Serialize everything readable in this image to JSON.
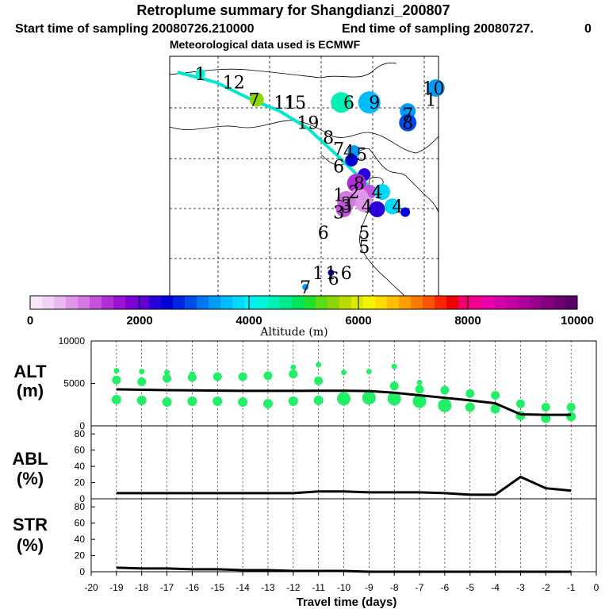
{
  "header": {
    "title": "Retroplume summary for Shangdianzi_200807",
    "start": "Start time of sampling 20080726.210000",
    "end": "End time of sampling 20080727.",
    "end_hour": "0",
    "met": "Meteorological data used is ECMWF"
  },
  "colorbar": {
    "title": "Altitude (m)",
    "ticks": [
      "0",
      "2000",
      "4000",
      "6000",
      "8000",
      "10000"
    ],
    "colors": [
      "#f7e8f8",
      "#f0d4f3",
      "#e8b8ee",
      "#df98e8",
      "#d478e2",
      "#c452dc",
      "#b02ed6",
      "#9a12d2",
      "#7f00d4",
      "#6200d8",
      "#2a00d8",
      "#0000d8",
      "#0024e0",
      "#004cea",
      "#0076f2",
      "#009cf8",
      "#00bcfc",
      "#00d8fc",
      "#00eef4",
      "#00f6dc",
      "#00f0b6",
      "#00ea8c",
      "#00e45c",
      "#22e02c",
      "#5cdc14",
      "#8cd608",
      "#b8dc00",
      "#dcea00",
      "#f6f400",
      "#fcdc00",
      "#fcc000",
      "#fca000",
      "#fc7c00",
      "#fc5400",
      "#fc2800",
      "#f00000",
      "#f0006c",
      "#f00090",
      "#e800a8",
      "#d800a8",
      "#c400a0",
      "#ae0098",
      "#98008c",
      "#820080",
      "#6c0072",
      "#580064"
    ]
  },
  "map_labels": [
    {
      "text": "1",
      "lon": 117.2,
      "lat": 47.9
    },
    {
      "text": "12",
      "lon": 118.5,
      "lat": 47.6
    },
    {
      "text": "7",
      "lon": 119.3,
      "lat": 47.0
    },
    {
      "text": "11",
      "lon": 120.5,
      "lat": 46.9
    },
    {
      "text": "15",
      "lon": 120.9,
      "lat": 46.9
    },
    {
      "text": "19",
      "lon": 121.4,
      "lat": 46.2
    },
    {
      "text": "8",
      "lon": 122.2,
      "lat": 45.7
    },
    {
      "text": "7",
      "lon": 122.6,
      "lat": 45.3
    },
    {
      "text": "4",
      "lon": 123.0,
      "lat": 45.2
    },
    {
      "text": "5",
      "lon": 123.5,
      "lat": 45.1
    },
    {
      "text": "6",
      "lon": 123.0,
      "lat": 46.9
    },
    {
      "text": "9",
      "lon": 124.0,
      "lat": 46.9
    },
    {
      "text": "7",
      "lon": 125.3,
      "lat": 46.5
    },
    {
      "text": "8",
      "lon": 125.3,
      "lat": 46.2
    },
    {
      "text": "10",
      "lon": 126.3,
      "lat": 47.4
    },
    {
      "text": "1",
      "lon": 126.2,
      "lat": 47.0
    },
    {
      "text": "6",
      "lon": 122.6,
      "lat": 44.7
    },
    {
      "text": "8",
      "lon": 123.4,
      "lat": 44.1
    },
    {
      "text": "2",
      "lon": 123.2,
      "lat": 43.8
    },
    {
      "text": "4",
      "lon": 124.1,
      "lat": 43.8
    },
    {
      "text": "1",
      "lon": 122.6,
      "lat": 43.7
    },
    {
      "text": "3",
      "lon": 122.9,
      "lat": 43.4
    },
    {
      "text": "3",
      "lon": 122.9,
      "lat": 43.3
    },
    {
      "text": "4",
      "lon": 123.7,
      "lat": 43.3
    },
    {
      "text": "3",
      "lon": 122.6,
      "lat": 43.1
    },
    {
      "text": "4",
      "lon": 124.9,
      "lat": 43.3
    },
    {
      "text": "6",
      "lon": 122.0,
      "lat": 42.4
    },
    {
      "text": "5",
      "lon": 123.6,
      "lat": 42.4
    },
    {
      "text": "5",
      "lon": 123.6,
      "lat": 41.9
    },
    {
      "text": "1",
      "lon": 121.8,
      "lat": 41.0
    },
    {
      "text": "1",
      "lon": 122.3,
      "lat": 41.0
    },
    {
      "text": "6",
      "lon": 122.4,
      "lat": 40.8
    },
    {
      "text": "6",
      "lon": 122.9,
      "lat": 41.0
    },
    {
      "text": "7",
      "lon": 121.3,
      "lat": 40.5
    }
  ],
  "map_plumes": [
    {
      "lon": 117.2,
      "lat": 47.9,
      "alt": 4300,
      "r": 6
    },
    {
      "lon": 119.4,
      "lat": 47.0,
      "alt": 5600,
      "r": 9
    },
    {
      "lon": 122.7,
      "lat": 46.9,
      "alt": 4500,
      "r": 13
    },
    {
      "lon": 123.8,
      "lat": 46.9,
      "alt": 3600,
      "r": 14
    },
    {
      "lon": 125.3,
      "lat": 46.6,
      "alt": 3400,
      "r": 10
    },
    {
      "lon": 125.3,
      "lat": 46.2,
      "alt": 3000,
      "r": 11
    },
    {
      "lon": 126.4,
      "lat": 47.4,
      "alt": 3300,
      "r": 11
    },
    {
      "lon": 123.2,
      "lat": 45.2,
      "alt": 3300,
      "r": 8
    },
    {
      "lon": 123.1,
      "lat": 44.9,
      "alt": 2500,
      "r": 8
    },
    {
      "lon": 123.6,
      "lat": 44.4,
      "alt": 2300,
      "r": 8
    },
    {
      "lon": 123.3,
      "lat": 44.1,
      "alt": 1400,
      "r": 12
    },
    {
      "lon": 123.8,
      "lat": 43.8,
      "alt": 1200,
      "r": 9
    },
    {
      "lon": 124.3,
      "lat": 43.8,
      "alt": 3700,
      "r": 10
    },
    {
      "lon": 123.4,
      "lat": 43.6,
      "alt": 800,
      "r": 12
    },
    {
      "lon": 122.9,
      "lat": 43.5,
      "alt": 900,
      "r": 12
    },
    {
      "lon": 123.6,
      "lat": 43.4,
      "alt": 700,
      "r": 11
    },
    {
      "lon": 122.8,
      "lat": 43.2,
      "alt": 1100,
      "r": 10
    },
    {
      "lon": 124.1,
      "lat": 43.2,
      "alt": 2200,
      "r": 10
    },
    {
      "lon": 124.7,
      "lat": 43.3,
      "alt": 3800,
      "r": 10
    },
    {
      "lon": 125.2,
      "lat": 43.1,
      "alt": 2400,
      "r": 6
    },
    {
      "lon": 122.3,
      "lat": 41.0,
      "alt": 2400,
      "r": 4
    },
    {
      "lon": 121.3,
      "lat": 40.5,
      "alt": 3300,
      "r": 4
    }
  ],
  "map_track": [
    {
      "lon": 116.3,
      "lat": 47.95
    },
    {
      "lon": 117.8,
      "lat": 47.6
    },
    {
      "lon": 119.2,
      "lat": 47.0
    },
    {
      "lon": 120.3,
      "lat": 46.6
    },
    {
      "lon": 121.4,
      "lat": 46.0
    },
    {
      "lon": 122.5,
      "lat": 45.1
    },
    {
      "lon": 123.2,
      "lat": 44.5
    },
    {
      "lon": 123.9,
      "lat": 43.9
    },
    {
      "lon": 124.2,
      "lat": 43.95
    }
  ],
  "chart_data": [
    {
      "type": "scatter",
      "panel_label": [
        "ALT",
        "(m)"
      ],
      "x": [
        -19,
        -18,
        -17,
        -16,
        -15,
        -14,
        -13,
        -12,
        -11,
        -10,
        -9,
        -8,
        -7,
        -6,
        -5,
        -4,
        -3,
        -2,
        -1
      ],
      "line_values": [
        4300,
        4250,
        4200,
        4180,
        4150,
        4120,
        4120,
        4120,
        4130,
        4130,
        4100,
        3900,
        3600,
        3300,
        3000,
        2650,
        1350,
        1300,
        1300
      ],
      "upper_points": [
        6500,
        6400,
        6300,
        6100,
        5900,
        5900,
        6100,
        6900,
        7200,
        6300,
        6400,
        7000,
        5100,
        null,
        null,
        null,
        null,
        null,
        null
      ],
      "mid_points": [
        5400,
        5200,
        5600,
        5700,
        5800,
        5800,
        5900,
        6100,
        5300,
        null,
        null,
        4700,
        4300,
        4200,
        3800,
        3600,
        2600,
        2200,
        2200
      ],
      "low_points": [
        3100,
        3000,
        2800,
        2900,
        2900,
        2800,
        2600,
        2900,
        3000,
        3200,
        3300,
        3200,
        2900,
        2400,
        2200,
        2000,
        1200,
        900,
        1100
      ],
      "xlim": [
        -20,
        0
      ],
      "ylim": [
        0,
        10000
      ],
      "yticks": [
        "0",
        "5000",
        "10000"
      ],
      "point_color": "#22ee66",
      "line_color": "#000000"
    },
    {
      "type": "line",
      "panel_label": [
        "ABL",
        "(%)"
      ],
      "x": [
        -19,
        -18,
        -17,
        -16,
        -15,
        -14,
        -13,
        -12,
        -11,
        -10,
        -9,
        -8,
        -7,
        -6,
        -5,
        -4,
        -3,
        -2,
        -1
      ],
      "values": [
        7,
        7,
        7,
        7,
        7,
        7,
        7,
        7,
        9,
        9,
        8,
        8,
        8,
        7,
        5,
        5,
        27,
        13,
        10
      ],
      "xlim": [
        -20,
        0
      ],
      "ylim": [
        0,
        90
      ],
      "yticks": [
        "0",
        "20",
        "40",
        "60",
        "80"
      ],
      "line_color": "#000000"
    },
    {
      "type": "line",
      "panel_label": [
        "STR",
        "(%)"
      ],
      "x": [
        -19,
        -18,
        -17,
        -16,
        -15,
        -14,
        -13,
        -12,
        -11,
        -10,
        -9,
        -8,
        -7,
        -6,
        -5,
        -4,
        -3,
        -2,
        -1
      ],
      "values": [
        5,
        4,
        4,
        3,
        3,
        2,
        2,
        1,
        1,
        1,
        0,
        0,
        0,
        0,
        0,
        0,
        0,
        0,
        0
      ],
      "xlim": [
        -20,
        0
      ],
      "ylim": [
        0,
        90
      ],
      "yticks": [
        "0",
        "20",
        "40",
        "60",
        "80"
      ],
      "line_color": "#000000"
    }
  ],
  "xaxis": {
    "label": "Travel time (days)",
    "ticks": [
      "-20",
      "-19",
      "-18",
      "-17",
      "-16",
      "-15",
      "-14",
      "-13",
      "-12",
      "-11",
      "-10",
      "-9",
      "-8",
      "-7",
      "-6",
      "-5",
      "-4",
      "-3",
      "-2",
      "-1",
      "0"
    ]
  }
}
